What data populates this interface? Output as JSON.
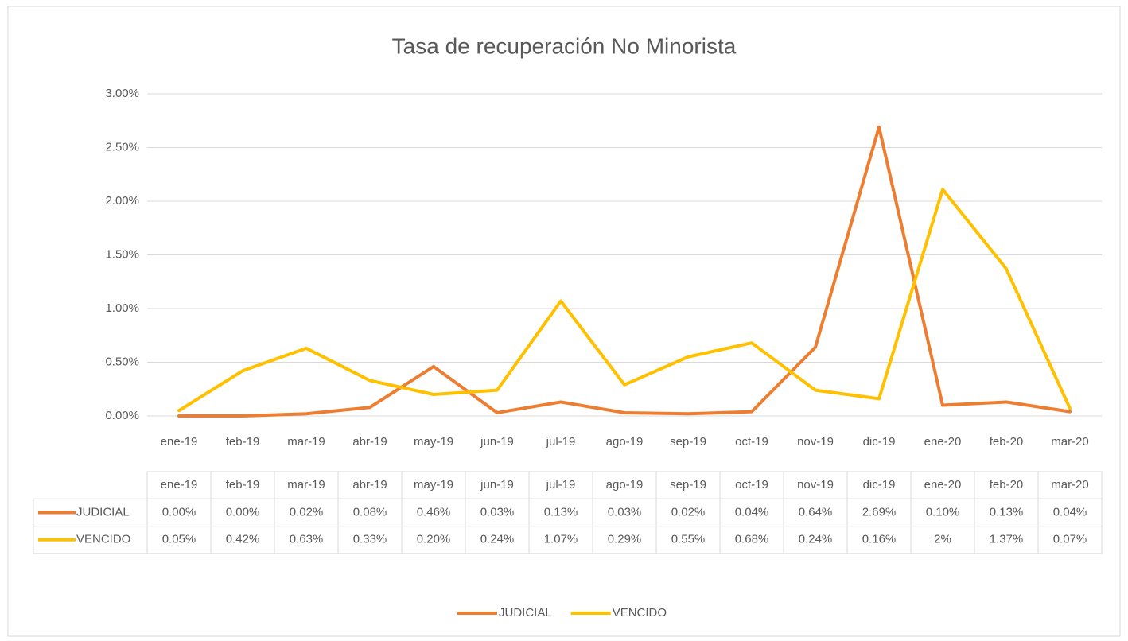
{
  "chart_data": {
    "type": "line",
    "title": "Tasa de recuperación No Minorista",
    "categories": [
      "ene-19",
      "feb-19",
      "mar-19",
      "abr-19",
      "may-19",
      "jun-19",
      "jul-19",
      "ago-19",
      "sep-19",
      "oct-19",
      "nov-19",
      "dic-19",
      "ene-20",
      "feb-20",
      "mar-20"
    ],
    "series": [
      {
        "name": "JUDICIAL",
        "color": "#ed7d31",
        "values": [
          0,
          0,
          0.02,
          0.08,
          0.46,
          0.03,
          0.13,
          0.03,
          0.02,
          0.04,
          0.64,
          2.69,
          0.1,
          0.13,
          0.04
        ],
        "value_labels": [
          "0.00%",
          "0.00%",
          "0.02%",
          "0.08%",
          "0.46%",
          "0.03%",
          "0.13%",
          "0.03%",
          "0.02%",
          "0.04%",
          "0.64%",
          "2.69%",
          "0.10%",
          "0.13%",
          "0.04%"
        ]
      },
      {
        "name": "VENCIDO",
        "color": "#ffc000",
        "values": [
          0.05,
          0.42,
          0.63,
          0.33,
          0.2,
          0.24,
          1.07,
          0.29,
          0.55,
          0.68,
          0.24,
          0.16,
          2.11,
          1.37,
          0.07
        ],
        "value_labels": [
          "0.05%",
          "0.42%",
          "0.63%",
          "0.33%",
          "0.20%",
          "0.24%",
          "1.07%",
          "0.29%",
          "0.55%",
          "0.68%",
          "0.24%",
          "0.16%",
          "2%",
          "1.37%",
          "0.07%"
        ]
      }
    ],
    "ylim": [
      0,
      3
    ],
    "yticks": [
      {
        "value": 0,
        "label": "0.00%"
      },
      {
        "value": 0.5,
        "label": "0.50%"
      },
      {
        "value": 1,
        "label": "1.00%"
      },
      {
        "value": 1.5,
        "label": "1.50%"
      },
      {
        "value": 2,
        "label": "2.00%"
      },
      {
        "value": 2.5,
        "label": "2.50%"
      },
      {
        "value": 3,
        "label": "3.00%"
      }
    ],
    "grid": true,
    "legend": "bottom"
  }
}
